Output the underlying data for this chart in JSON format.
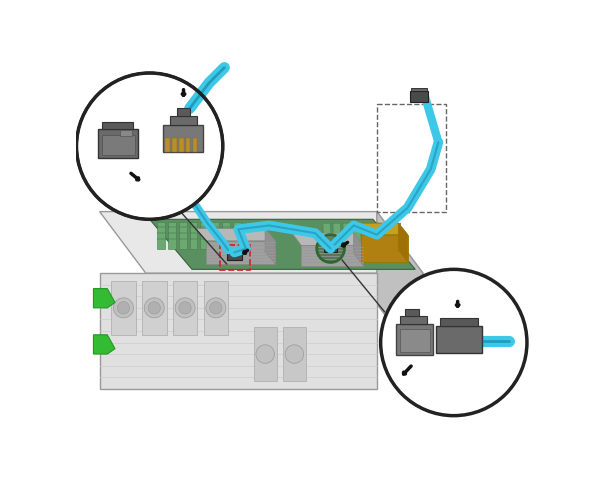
{
  "bg_color": "#ffffff",
  "fig_width": 6.0,
  "fig_height": 4.8,
  "dpi": 100,
  "colors": {
    "chassis_body": "#e8e8e8",
    "chassis_top": "#f0f0f0",
    "chassis_front": "#d0d0d0",
    "chassis_side": "#c0c0c0",
    "chassis_edge": "#999999",
    "board_green": "#5a9060",
    "board_edge": "#3a6040",
    "heatsink": "#aaaaaa",
    "heatsink_edge": "#888888",
    "heatsink_fin": "#999999",
    "memory_green": "#6aaa70",
    "memory_dark": "#4a7a50",
    "pcie_yellow": "#c8a020",
    "pcie_edge": "#9a7800",
    "connector_dark": "#4a4a4a",
    "connector_mid": "#666666",
    "connector_light": "#909090",
    "cable_blue": "#3ec8e8",
    "cable_blue_dark": "#1a9ab8",
    "cable_outline": "#0a7090",
    "arrow_color": "#111111",
    "circle_stroke": "#222222",
    "dashed_color": "#555555",
    "red_dashed": "#cc2222",
    "green_tab": "#33bb33",
    "green_tab_dark": "#229922",
    "fan_gray": "#c8c8c8",
    "fan_dark": "#aaaaaa",
    "white": "#ffffff",
    "rack_gray": "#d8d8d8",
    "rack_dark": "#b8b8b8",
    "rack_stripe": "#c0c0c0"
  }
}
